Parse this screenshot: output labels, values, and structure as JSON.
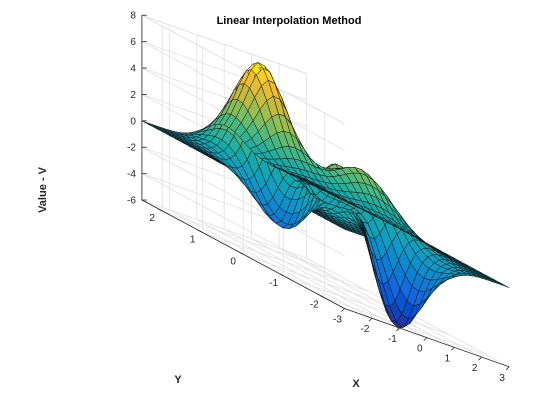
{
  "chart_data": {
    "type": "surface",
    "title": "Linear Interpolation Method",
    "xlabel": "X",
    "ylabel": "Y",
    "zlabel": "Value - V",
    "xlim": [
      -3,
      3
    ],
    "ylim": [
      -2.5,
      2.5
    ],
    "zlim": [
      -6,
      8
    ],
    "x_ticks": [
      "-3",
      "-2",
      "-1",
      "0",
      "1",
      "2",
      "3"
    ],
    "y_ticks": [
      "-2",
      "-1",
      "0",
      "1",
      "2"
    ],
    "z_ticks": [
      "-6",
      "-4",
      "-2",
      "0",
      "2",
      "4",
      "6",
      "8"
    ],
    "grid": true,
    "colormap": "parula",
    "function": "peaks (MATLAB)",
    "surface_grid": {
      "x_range": [
        -3,
        3
      ],
      "y_range": [
        -2.5,
        2.5
      ],
      "nx": 33,
      "ny": 31
    },
    "value_range": [
      -6.55,
      8.1
    ]
  }
}
